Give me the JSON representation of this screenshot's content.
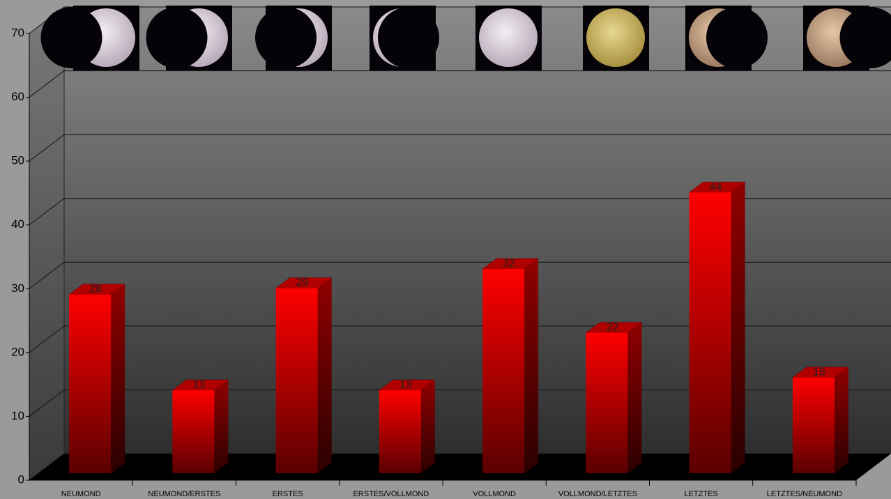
{
  "chart_data": {
    "type": "bar3d",
    "categories": [
      "NEUMOND",
      "NEUMOND/ERSTES",
      "ERSTES",
      "ERSTES/VOLLMOND",
      "VOLLMOND",
      "VOLLMOND/LETZTES",
      "LETZTES",
      "LETZTES/NEUMOND"
    ],
    "values": [
      28,
      13,
      29,
      13,
      32,
      22,
      44,
      15
    ],
    "color": "#ff0000",
    "ylim": [
      0,
      70
    ],
    "yticks": [
      0,
      10,
      20,
      30,
      40,
      50,
      60,
      70
    ],
    "grid": true
  }
}
